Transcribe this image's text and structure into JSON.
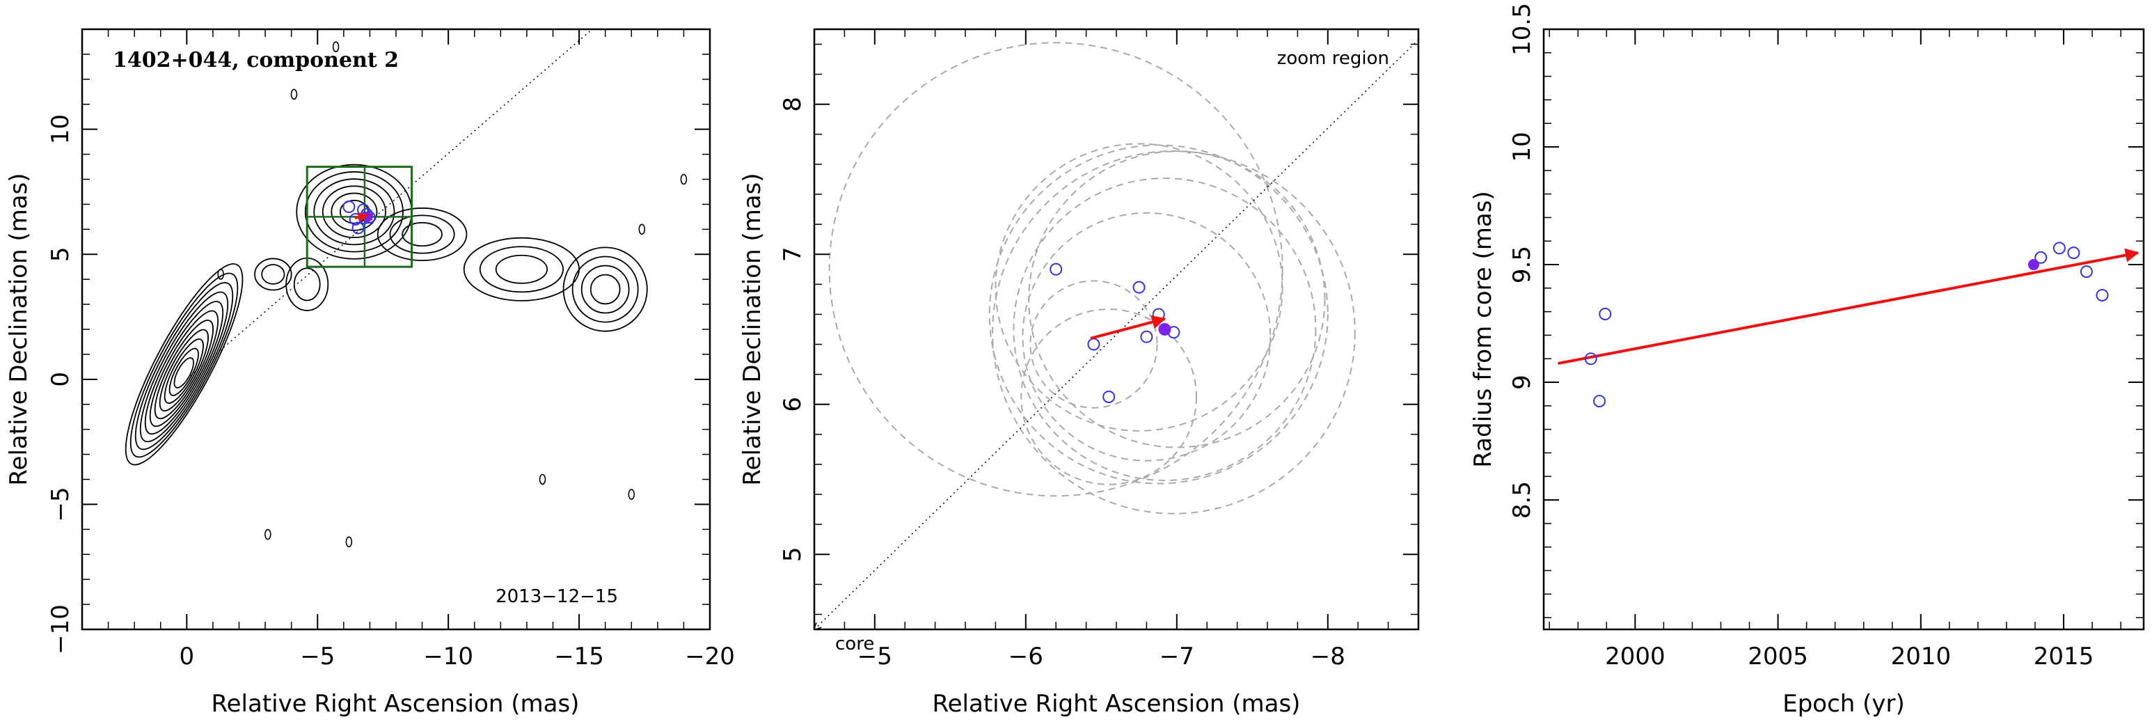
{
  "chart_data": [
    {
      "type": "contour",
      "title": "1402+044, component 2",
      "xlabel": "Relative Right Ascension (mas)",
      "ylabel": "Relative Declination (mas)",
      "xlim": [
        4,
        -20
      ],
      "ylim": [
        -10,
        14
      ],
      "xticks": [
        0,
        -5,
        -10,
        -15,
        -20
      ],
      "yticks": [
        -10,
        -5,
        0,
        5,
        10
      ],
      "annotation": "2013−12−15",
      "core_contour_levels": 11,
      "zoom_box": {
        "x": [
          -4.6,
          -8.6
        ],
        "y": [
          4.5,
          8.5
        ]
      },
      "zoom_box_cross": {
        "x": -6.8,
        "y": 6.5
      },
      "component_positions": [
        {
          "x": -6.2,
          "y": 6.9
        },
        {
          "x": -6.75,
          "y": 6.78
        },
        {
          "x": -6.88,
          "y": 6.6
        },
        {
          "x": -6.45,
          "y": 6.4
        },
        {
          "x": -6.8,
          "y": 6.45
        },
        {
          "x": -6.98,
          "y": 6.48
        },
        {
          "x": -6.55,
          "y": 6.05
        }
      ],
      "highlight_position": {
        "x": -6.92,
        "y": 6.5
      },
      "colors": {
        "contour": "#000000",
        "box": "#1e6b1e",
        "points": "#3333ee",
        "highlight": "#7a22ee",
        "arrow": "#ee1111"
      }
    },
    {
      "type": "scatter",
      "xlabel": "Relative Right Ascension (mas)",
      "ylabel": "Relative Declination (mas)",
      "xlim": [
        -4.6,
        -8.6
      ],
      "ylim": [
        4.5,
        8.5
      ],
      "xticks": [
        -5,
        -6,
        -7,
        -8
      ],
      "yticks": [
        5,
        6,
        7,
        8
      ],
      "zoom_label": "zoom region",
      "core_label": "core",
      "points": [
        {
          "x": -6.2,
          "y": 6.9
        },
        {
          "x": -6.45,
          "y": 6.4
        },
        {
          "x": -6.55,
          "y": 6.05
        },
        {
          "x": -6.75,
          "y": 6.78
        },
        {
          "x": -6.8,
          "y": 6.45
        },
        {
          "x": -6.88,
          "y": 6.6
        },
        {
          "x": -6.98,
          "y": 6.48
        }
      ],
      "highlight_point": {
        "x": -6.92,
        "y": 6.5
      },
      "velocity_arrow": {
        "from": {
          "x": -6.43,
          "y": 6.44
        },
        "to": {
          "x": -6.92,
          "y": 6.57
        }
      },
      "uncertainty_circles": [
        {
          "cx": -6.2,
          "cy": 6.9,
          "r": 1.5
        },
        {
          "cx": -6.45,
          "cy": 6.4,
          "r": 0.42
        },
        {
          "cx": -6.55,
          "cy": 6.05,
          "r": 0.58
        },
        {
          "cx": -6.75,
          "cy": 6.78,
          "r": 0.95
        },
        {
          "cx": -6.8,
          "cy": 6.45,
          "r": 0.82
        },
        {
          "cx": -6.88,
          "cy": 6.6,
          "r": 1.12
        },
        {
          "cx": -6.98,
          "cy": 6.48,
          "r": 1.2
        },
        {
          "cx": -7.0,
          "cy": 6.7,
          "r": 0.98
        },
        {
          "cx": -6.92,
          "cy": 6.5,
          "r": 1.0
        }
      ],
      "colors": {
        "points": "#3333ee",
        "highlight": "#7a22ee",
        "arrow": "#ee1111",
        "circles": "#aaaaaa"
      }
    },
    {
      "type": "scatter",
      "xlabel": "Epoch (yr)",
      "ylabel": "Radius from core (mas)",
      "xlim": [
        1996.8,
        2017.8
      ],
      "ylim": [
        7.95,
        10.5
      ],
      "xticks": [
        2000,
        2005,
        2010,
        2015
      ],
      "yticks": [
        8.5,
        9,
        9.5,
        10,
        10.5
      ],
      "points": [
        {
          "x": 1998.45,
          "y": 9.1
        },
        {
          "x": 1998.75,
          "y": 8.92
        },
        {
          "x": 1998.95,
          "y": 9.29
        },
        {
          "x": 2014.2,
          "y": 9.53
        },
        {
          "x": 2014.85,
          "y": 9.57
        },
        {
          "x": 2015.35,
          "y": 9.55
        },
        {
          "x": 2015.8,
          "y": 9.47
        },
        {
          "x": 2016.35,
          "y": 9.37
        }
      ],
      "highlight_point": {
        "x": 2013.95,
        "y": 9.5
      },
      "fit_arrow": {
        "from": {
          "x": 1997.3,
          "y": 9.08
        },
        "to": {
          "x": 2017.6,
          "y": 9.55
        }
      },
      "colors": {
        "points": "#3333ee",
        "highlight": "#7a22ee",
        "arrow": "#ee1111"
      }
    }
  ]
}
